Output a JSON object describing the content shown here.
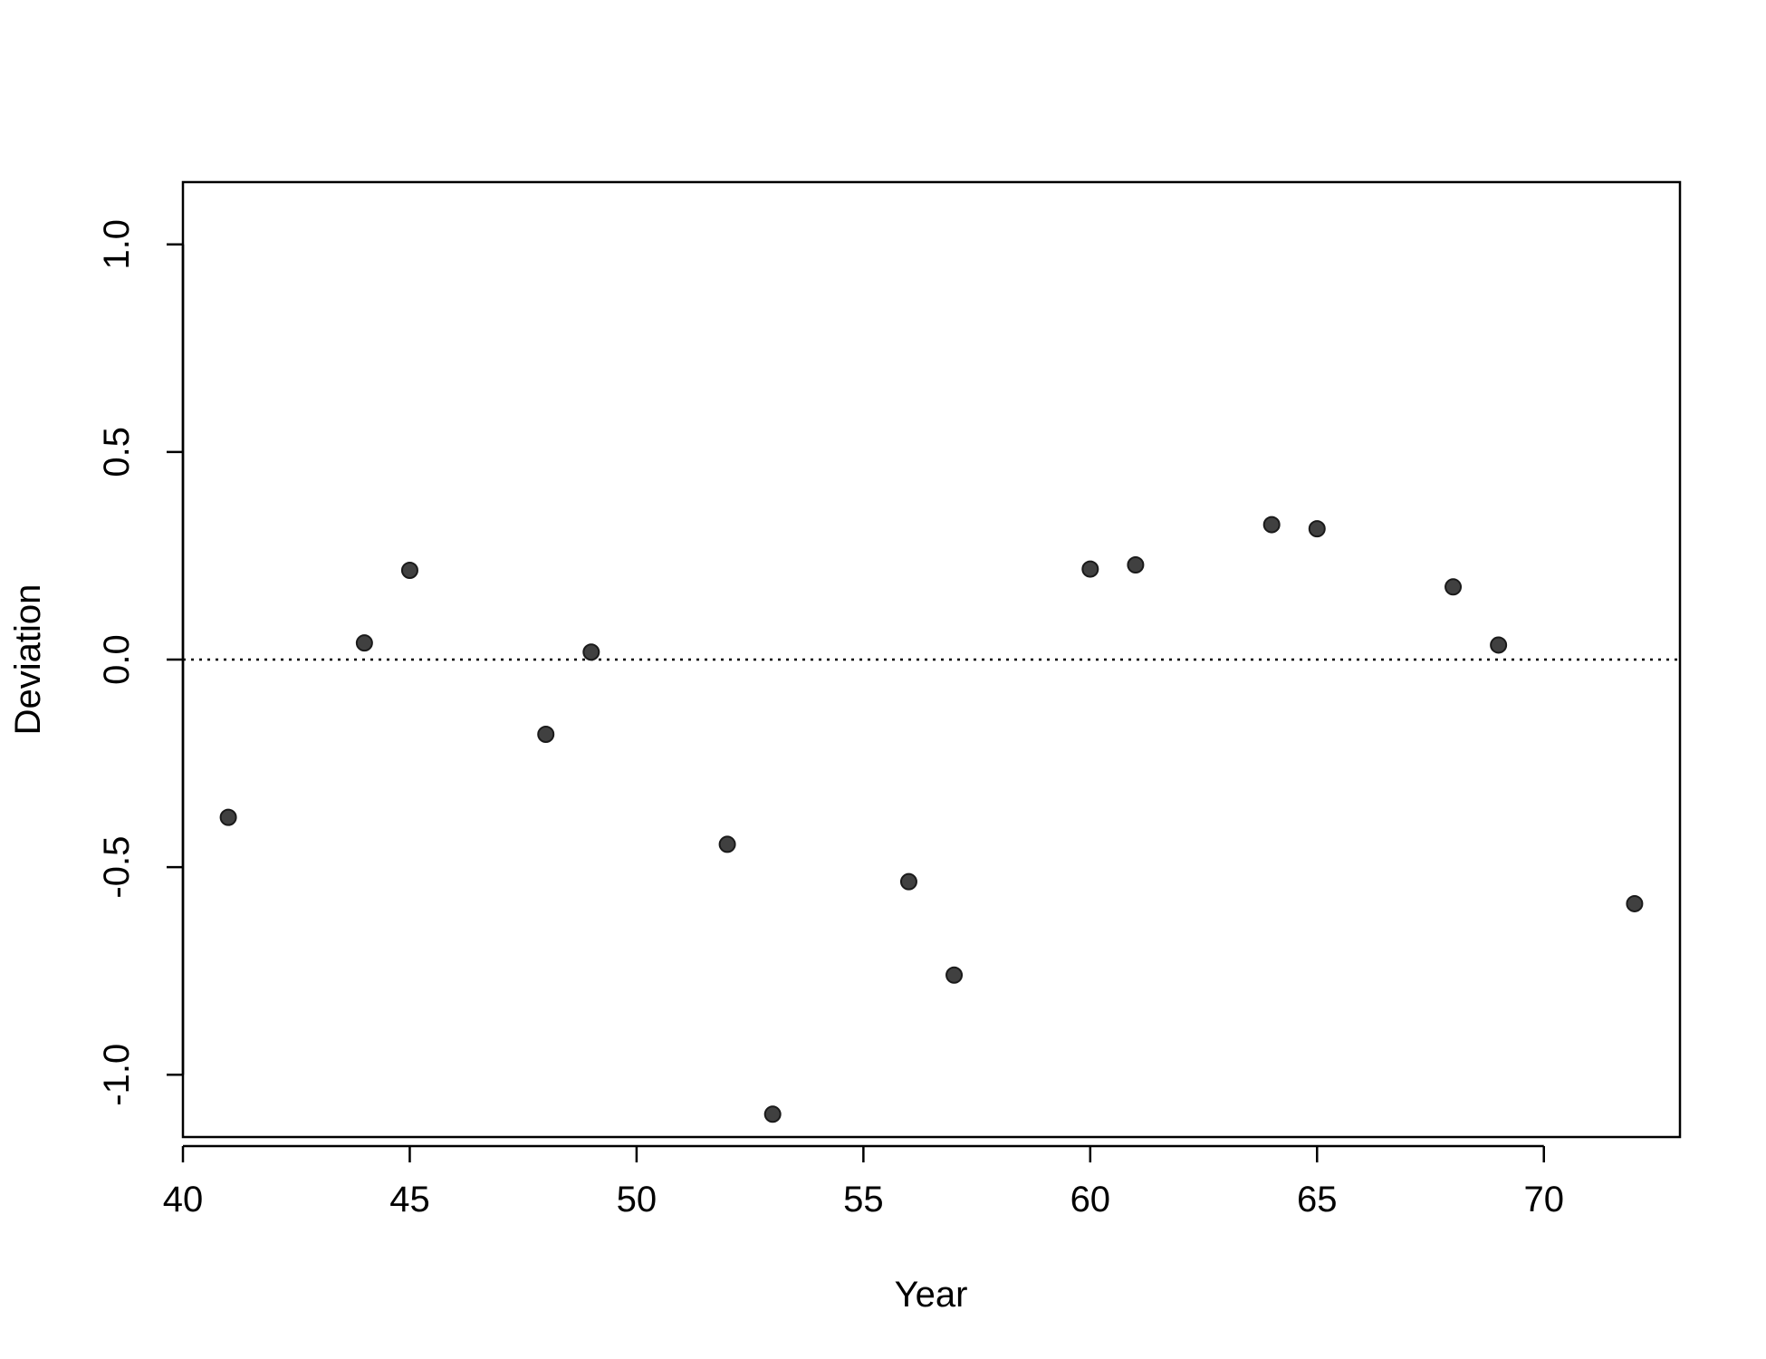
{
  "chart_data": {
    "type": "scatter",
    "xlabel": "Year",
    "ylabel": "Deviation",
    "xlim": [
      40,
      73
    ],
    "ylim": [
      -1.15,
      1.15
    ],
    "x_ticks": [
      40,
      45,
      50,
      55,
      60,
      65,
      70
    ],
    "x_tick_labels": [
      "40",
      "45",
      "50",
      "55",
      "60",
      "65",
      "70"
    ],
    "y_ticks": [
      -1.0,
      -0.5,
      0.0,
      0.5,
      1.0
    ],
    "y_tick_labels": [
      "-1.0",
      "-0.5",
      "0.0",
      "0.5",
      "1.0"
    ],
    "reference_line": {
      "y": 0.0,
      "style": "dotted"
    },
    "grid": false,
    "legend": "none",
    "point_color": "#404040",
    "points": [
      {
        "x": 41,
        "y": -0.38
      },
      {
        "x": 44,
        "y": 0.04
      },
      {
        "x": 45,
        "y": 0.215
      },
      {
        "x": 48,
        "y": -0.18
      },
      {
        "x": 49,
        "y": 0.018
      },
      {
        "x": 52,
        "y": -0.445
      },
      {
        "x": 53,
        "y": -1.095
      },
      {
        "x": 56,
        "y": -0.535
      },
      {
        "x": 57,
        "y": -0.76
      },
      {
        "x": 60,
        "y": 0.218
      },
      {
        "x": 61,
        "y": 0.228
      },
      {
        "x": 64,
        "y": 0.325
      },
      {
        "x": 65,
        "y": 0.315
      },
      {
        "x": 68,
        "y": 0.175
      },
      {
        "x": 69,
        "y": 0.035
      },
      {
        "x": 72,
        "y": -0.588
      }
    ]
  }
}
